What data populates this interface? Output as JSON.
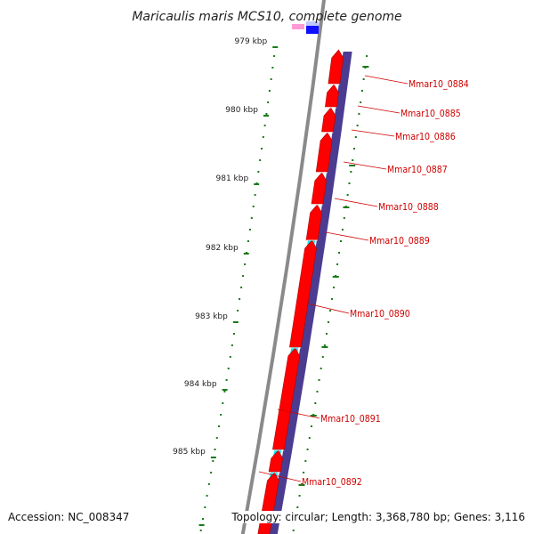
{
  "title": "Maricaulis maris MCS10, complete genome",
  "accession": "Accession: NC_008347",
  "topology": "Topology: circular; Length: 3,368,780 bp; Genes: 3,116",
  "colors": {
    "backbone": "#8a8a8a",
    "cds_reverse": "#ff0000",
    "cds_forward": "#4b3c91",
    "cds_cyan": "#00eaf0",
    "gene_label": "#d00000",
    "tick": "#1a7a1a"
  },
  "kbp_ticks": [
    "979 kbp",
    "980 kbp",
    "981 kbp",
    "982 kbp",
    "983 kbp",
    "984 kbp",
    "985 kbp"
  ],
  "genes": [
    {
      "label": "Mmar10_0884"
    },
    {
      "label": "Mmar10_0885"
    },
    {
      "label": "Mmar10_0886"
    },
    {
      "label": "Mmar10_0887"
    },
    {
      "label": "Mmar10_0888"
    },
    {
      "label": "Mmar10_0889"
    },
    {
      "label": "Mmar10_0890"
    },
    {
      "label": "Mmar10_0891"
    },
    {
      "label": "Mmar10_0892"
    }
  ]
}
